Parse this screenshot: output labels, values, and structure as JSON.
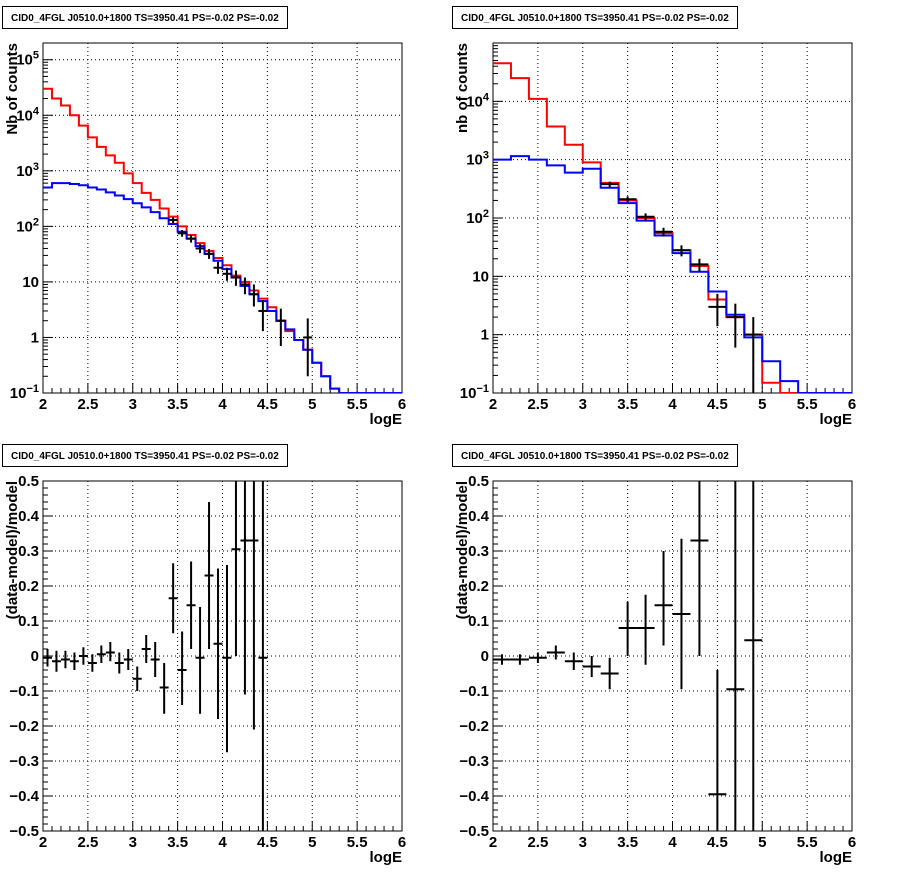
{
  "panels": [
    {
      "title": "CID0_4FGL J0510.0+1800 TS=3950.41 PS=-0.02 PS=-0.02"
    },
    {
      "title": "CID0_4FGL J0510.0+1800 TS=3950.41 PS=-0.02 PS=-0.02"
    },
    {
      "title": "CID0_4FGL J0510.0+1800 TS=3950.41 PS=-0.02 PS=-0.02"
    },
    {
      "title": "CID0_4FGL J0510.0+1800 TS=3950.41 PS=-0.02 PS=-0.02"
    }
  ],
  "colors": {
    "total_model": "#ff0000",
    "source_model": "#0000ff",
    "data": "#000000"
  },
  "chart_data": [
    {
      "type": "line",
      "scale": "log",
      "title": "CID0_4FGL J0510.0+1800 TS=3950.41 PS=-0.02 PS=-0.02",
      "xlabel": "logE",
      "ylabel": "Nb of counts",
      "xlim": [
        2,
        6
      ],
      "ylim": [
        0.1,
        200000
      ],
      "xticks": [
        "2",
        "2.5",
        "3",
        "3.5",
        "4",
        "4.5",
        "5",
        "5.5",
        "6"
      ],
      "yticks": [
        {
          "v": 0.1,
          "base": "10",
          "exp": "−1"
        },
        {
          "v": 1,
          "label": "1"
        },
        {
          "v": 10,
          "label": "10"
        },
        {
          "v": 100,
          "base": "10",
          "exp": "2"
        },
        {
          "v": 1000,
          "base": "10",
          "exp": "3"
        },
        {
          "v": 10000,
          "base": "10",
          "exp": "4"
        },
        {
          "v": 100000,
          "base": "10",
          "exp": "5"
        }
      ],
      "grid": true,
      "bin_edges": [
        2,
        2.1,
        2.2,
        2.3,
        2.4,
        2.5,
        2.6,
        2.7,
        2.8,
        2.9,
        3,
        3.1,
        3.2,
        3.3,
        3.4,
        3.5,
        3.6,
        3.7,
        3.8,
        3.9,
        4,
        4.1,
        4.2,
        4.3,
        4.4,
        4.5,
        4.6,
        4.7,
        4.8,
        4.9,
        5,
        5.1,
        5.2,
        5.3,
        5.4,
        5.5,
        5.6,
        5.7,
        5.8,
        5.9,
        6
      ],
      "series": [
        {
          "color": "#ff0000",
          "values": [
            30000,
            20000,
            15000,
            10000,
            6500,
            4000,
            2700,
            1900,
            1400,
            900,
            600,
            400,
            300,
            210,
            150,
            100,
            70,
            50,
            36,
            27,
            20,
            13,
            10,
            7,
            5,
            3.5,
            2,
            1.3,
            0.9,
            0.6,
            0.35,
            0.2,
            0.12,
            0.1,
            0.1,
            0.1,
            0.1,
            0.1,
            0.1,
            0.1
          ]
        },
        {
          "color": "#0000ff",
          "values": [
            500,
            600,
            600,
            580,
            550,
            500,
            460,
            410,
            360,
            310,
            260,
            220,
            180,
            140,
            110,
            80,
            60,
            44,
            32,
            24,
            17,
            12,
            8.5,
            6,
            4.5,
            3,
            2,
            1.4,
            0.9,
            0.6,
            0.35,
            0.2,
            0.12,
            0.1,
            0.1,
            0.1,
            0.1,
            0.1,
            0.1,
            0.1
          ]
        }
      ],
      "points": [
        {
          "x": 3.45,
          "y": 130,
          "xerr": 0.05,
          "ylo": 115,
          "yhi": 145
        },
        {
          "x": 3.55,
          "y": 75,
          "xerr": 0.05,
          "ylo": 65,
          "yhi": 86
        },
        {
          "x": 3.65,
          "y": 60,
          "xerr": 0.05,
          "ylo": 51,
          "yhi": 70
        },
        {
          "x": 3.75,
          "y": 40,
          "xerr": 0.05,
          "ylo": 33,
          "yhi": 48
        },
        {
          "x": 3.85,
          "y": 32,
          "xerr": 0.05,
          "ylo": 26,
          "yhi": 39
        },
        {
          "x": 3.95,
          "y": 18,
          "xerr": 0.05,
          "ylo": 14,
          "yhi": 23
        },
        {
          "x": 4.05,
          "y": 14,
          "xerr": 0.05,
          "ylo": 10.5,
          "yhi": 18
        },
        {
          "x": 4.15,
          "y": 12,
          "xerr": 0.05,
          "ylo": 8.5,
          "yhi": 16
        },
        {
          "x": 4.25,
          "y": 9,
          "xerr": 0.05,
          "ylo": 6,
          "yhi": 12
        },
        {
          "x": 4.35,
          "y": 6,
          "xerr": 0.05,
          "ylo": 3.6,
          "yhi": 9
        },
        {
          "x": 4.45,
          "y": 3,
          "xerr": 0.05,
          "ylo": 1.3,
          "yhi": 4.7
        },
        {
          "x": 4.65,
          "y": 2,
          "xerr": 0.05,
          "ylo": 0.7,
          "yhi": 3.3
        },
        {
          "x": 4.95,
          "y": 1,
          "xerr": 0.05,
          "ylo": 0.2,
          "yhi": 2.2
        }
      ]
    },
    {
      "type": "line",
      "scale": "log",
      "title": "CID0_4FGL J0510.0+1800 TS=3950.41 PS=-0.02 PS=-0.02",
      "xlabel": "logE",
      "ylabel": "nb of counts",
      "xlim": [
        2,
        6
      ],
      "ylim": [
        0.1,
        100000
      ],
      "xticks": [
        "2",
        "2.5",
        "3",
        "3.5",
        "4",
        "4.5",
        "5",
        "5.5",
        "6"
      ],
      "yticks": [
        {
          "v": 0.1,
          "base": "10",
          "exp": "−1"
        },
        {
          "v": 1,
          "label": "1"
        },
        {
          "v": 10,
          "label": "10"
        },
        {
          "v": 100,
          "base": "10",
          "exp": "2"
        },
        {
          "v": 1000,
          "base": "10",
          "exp": "3"
        },
        {
          "v": 10000,
          "base": "10",
          "exp": "4"
        }
      ],
      "grid": true,
      "bin_edges": [
        2,
        2.2,
        2.4,
        2.6,
        2.8,
        3,
        3.2,
        3.4,
        3.6,
        3.8,
        4,
        4.2,
        4.4,
        4.6,
        4.8,
        5,
        5.2,
        5.4,
        5.6,
        5.8,
        6
      ],
      "series": [
        {
          "color": "#ff0000",
          "values": [
            45000,
            25000,
            11000,
            3700,
            1800,
            900,
            400,
            200,
            100,
            55,
            28,
            15,
            4,
            2,
            1,
            0.15,
            0.1,
            0.1,
            0.1,
            0.1
          ]
        },
        {
          "color": "#0000ff",
          "values": [
            1000,
            1150,
            1000,
            800,
            600,
            700,
            330,
            180,
            90,
            50,
            25,
            12,
            5.5,
            2.2,
            0.9,
            0.35,
            0.16,
            0.1,
            0.1,
            0.1
          ]
        }
      ],
      "points": [
        {
          "x": 3.3,
          "y": 380,
          "xerr": 0.1,
          "ylo": 340,
          "yhi": 420
        },
        {
          "x": 3.5,
          "y": 210,
          "xerr": 0.1,
          "ylo": 185,
          "yhi": 235
        },
        {
          "x": 3.7,
          "y": 105,
          "xerr": 0.1,
          "ylo": 90,
          "yhi": 120
        },
        {
          "x": 3.9,
          "y": 58,
          "xerr": 0.1,
          "ylo": 48,
          "yhi": 68
        },
        {
          "x": 4.1,
          "y": 28,
          "xerr": 0.1,
          "ylo": 22,
          "yhi": 34
        },
        {
          "x": 4.3,
          "y": 16,
          "xerr": 0.1,
          "ylo": 12,
          "yhi": 20
        },
        {
          "x": 4.5,
          "y": 3,
          "xerr": 0.1,
          "ylo": 1.4,
          "yhi": 5
        },
        {
          "x": 4.7,
          "y": 2,
          "xerr": 0.1,
          "ylo": 0.6,
          "yhi": 3.4
        },
        {
          "x": 4.9,
          "y": 1,
          "xerr": 0.1,
          "ylo": 0.1,
          "yhi": 2
        }
      ]
    },
    {
      "type": "scatter",
      "scale": "linear",
      "title": "CID0_4FGL J0510.0+1800 TS=3950.41 PS=-0.02 PS=-0.02",
      "xlabel": "logE",
      "ylabel": "(data-model)/model",
      "xlim": [
        2,
        6
      ],
      "ylim": [
        -0.5,
        0.5
      ],
      "xticks": [
        "2",
        "2.5",
        "3",
        "3.5",
        "4",
        "4.5",
        "5",
        "5.5",
        "6"
      ],
      "yticks": [
        {
          "v": -0.5,
          "label": "−0.5"
        },
        {
          "v": -0.4,
          "label": "−0.4"
        },
        {
          "v": -0.3,
          "label": "−0.3"
        },
        {
          "v": -0.2,
          "label": "−0.2"
        },
        {
          "v": -0.1,
          "label": "−0.1"
        },
        {
          "v": 0,
          "label": "0"
        },
        {
          "v": 0.1,
          "label": "0.1"
        },
        {
          "v": 0.2,
          "label": "0.2"
        },
        {
          "v": 0.3,
          "label": "0.3"
        },
        {
          "v": 0.4,
          "label": "0.4"
        },
        {
          "v": 0.5,
          "label": "0.5"
        }
      ],
      "grid": true,
      "points": [
        {
          "x": 2.05,
          "y": -0.005,
          "xerr": 0.05,
          "ylo": -0.03,
          "yhi": 0.02
        },
        {
          "x": 2.15,
          "y": -0.015,
          "xerr": 0.05,
          "ylo": -0.045,
          "yhi": 0.015
        },
        {
          "x": 2.25,
          "y": -0.01,
          "xerr": 0.05,
          "ylo": -0.035,
          "yhi": 0.015
        },
        {
          "x": 2.35,
          "y": -0.015,
          "xerr": 0.05,
          "ylo": -0.04,
          "yhi": 0.01
        },
        {
          "x": 2.45,
          "y": 0.0,
          "xerr": 0.05,
          "ylo": -0.025,
          "yhi": 0.025
        },
        {
          "x": 2.55,
          "y": -0.02,
          "xerr": 0.05,
          "ylo": -0.045,
          "yhi": 0.005
        },
        {
          "x": 2.65,
          "y": 0.005,
          "xerr": 0.05,
          "ylo": -0.02,
          "yhi": 0.03
        },
        {
          "x": 2.75,
          "y": 0.01,
          "xerr": 0.05,
          "ylo": -0.015,
          "yhi": 0.04
        },
        {
          "x": 2.85,
          "y": -0.02,
          "xerr": 0.05,
          "ylo": -0.05,
          "yhi": 0.01
        },
        {
          "x": 2.95,
          "y": -0.01,
          "xerr": 0.05,
          "ylo": -0.04,
          "yhi": 0.02
        },
        {
          "x": 3.05,
          "y": -0.065,
          "xerr": 0.05,
          "ylo": -0.1,
          "yhi": -0.03
        },
        {
          "x": 3.15,
          "y": 0.02,
          "xerr": 0.05,
          "ylo": -0.02,
          "yhi": 0.06
        },
        {
          "x": 3.25,
          "y": -0.01,
          "xerr": 0.05,
          "ylo": -0.06,
          "yhi": 0.04
        },
        {
          "x": 3.35,
          "y": -0.09,
          "xerr": 0.05,
          "ylo": -0.165,
          "yhi": -0.02
        },
        {
          "x": 3.45,
          "y": 0.165,
          "xerr": 0.05,
          "ylo": 0.065,
          "yhi": 0.265
        },
        {
          "x": 3.55,
          "y": -0.04,
          "xerr": 0.05,
          "ylo": -0.14,
          "yhi": 0.07
        },
        {
          "x": 3.65,
          "y": 0.145,
          "xerr": 0.05,
          "ylo": 0.02,
          "yhi": 0.27
        },
        {
          "x": 3.75,
          "y": -0.005,
          "xerr": 0.05,
          "ylo": -0.165,
          "yhi": 0.14
        },
        {
          "x": 3.85,
          "y": 0.23,
          "xerr": 0.05,
          "ylo": 0.02,
          "yhi": 0.44
        },
        {
          "x": 3.95,
          "y": 0.035,
          "xerr": 0.05,
          "ylo": -0.18,
          "yhi": 0.25
        },
        {
          "x": 4.05,
          "y": -0.005,
          "xerr": 0.05,
          "ylo": -0.275,
          "yhi": 0.26
        },
        {
          "x": 4.15,
          "y": 0.305,
          "xerr": 0.05,
          "ylo": 0.0,
          "yhi": 0.5
        },
        {
          "x": 4.25,
          "y": 0.33,
          "xerr": 0.05,
          "ylo": -0.11,
          "yhi": 0.5
        },
        {
          "x": 4.35,
          "y": 0.33,
          "xerr": 0.05,
          "ylo": -0.21,
          "yhi": 0.5
        },
        {
          "x": 4.45,
          "y": -0.005,
          "xerr": 0.05,
          "ylo": -0.5,
          "yhi": 0.5
        }
      ]
    },
    {
      "type": "scatter",
      "scale": "linear",
      "title": "CID0_4FGL J0510.0+1800 TS=3950.41 PS=-0.02 PS=-0.02",
      "xlabel": "logE",
      "ylabel": "(data-model)/model",
      "xlim": [
        2,
        6
      ],
      "ylim": [
        -0.5,
        0.5
      ],
      "xticks": [
        "2",
        "2.5",
        "3",
        "3.5",
        "4",
        "4.5",
        "5",
        "5.5",
        "6"
      ],
      "yticks": [
        {
          "v": -0.5,
          "label": "−0.5"
        },
        {
          "v": -0.4,
          "label": "−0.4"
        },
        {
          "v": -0.3,
          "label": "−0.3"
        },
        {
          "v": -0.2,
          "label": "−0.2"
        },
        {
          "v": -0.1,
          "label": "−0.1"
        },
        {
          "v": 0,
          "label": "0"
        },
        {
          "v": 0.1,
          "label": "0.1"
        },
        {
          "v": 0.2,
          "label": "0.2"
        },
        {
          "v": 0.3,
          "label": "0.3"
        },
        {
          "v": 0.4,
          "label": "0.4"
        },
        {
          "v": 0.5,
          "label": "0.5"
        }
      ],
      "grid": true,
      "points": [
        {
          "x": 2.1,
          "y": -0.01,
          "xerr": 0.1,
          "ylo": -0.025,
          "yhi": 0.005
        },
        {
          "x": 2.3,
          "y": -0.01,
          "xerr": 0.1,
          "ylo": -0.025,
          "yhi": 0.005
        },
        {
          "x": 2.5,
          "y": -0.005,
          "xerr": 0.1,
          "ylo": -0.02,
          "yhi": 0.01
        },
        {
          "x": 2.7,
          "y": 0.01,
          "xerr": 0.1,
          "ylo": -0.01,
          "yhi": 0.03
        },
        {
          "x": 2.9,
          "y": -0.015,
          "xerr": 0.1,
          "ylo": -0.04,
          "yhi": 0.01
        },
        {
          "x": 3.1,
          "y": -0.03,
          "xerr": 0.1,
          "ylo": -0.06,
          "yhi": 0.0
        },
        {
          "x": 3.3,
          "y": -0.05,
          "xerr": 0.1,
          "ylo": -0.095,
          "yhi": -0.005
        },
        {
          "x": 3.5,
          "y": 0.08,
          "xerr": 0.1,
          "ylo": 0.0,
          "yhi": 0.155
        },
        {
          "x": 3.7,
          "y": 0.08,
          "xerr": 0.1,
          "ylo": -0.025,
          "yhi": 0.175
        },
        {
          "x": 3.9,
          "y": 0.145,
          "xerr": 0.1,
          "ylo": 0.03,
          "yhi": 0.3
        },
        {
          "x": 4.1,
          "y": 0.12,
          "xerr": 0.1,
          "ylo": -0.095,
          "yhi": 0.335
        },
        {
          "x": 4.3,
          "y": 0.33,
          "xerr": 0.1,
          "ylo": 0.0,
          "yhi": 0.5
        },
        {
          "x": 4.5,
          "y": -0.395,
          "xerr": 0.1,
          "ylo": -0.5,
          "yhi": -0.04
        },
        {
          "x": 4.7,
          "y": -0.095,
          "xerr": 0.1,
          "ylo": -0.5,
          "yhi": 0.5
        },
        {
          "x": 4.9,
          "y": 0.045,
          "xerr": 0.1,
          "ylo": -0.5,
          "yhi": 0.5
        }
      ]
    }
  ]
}
